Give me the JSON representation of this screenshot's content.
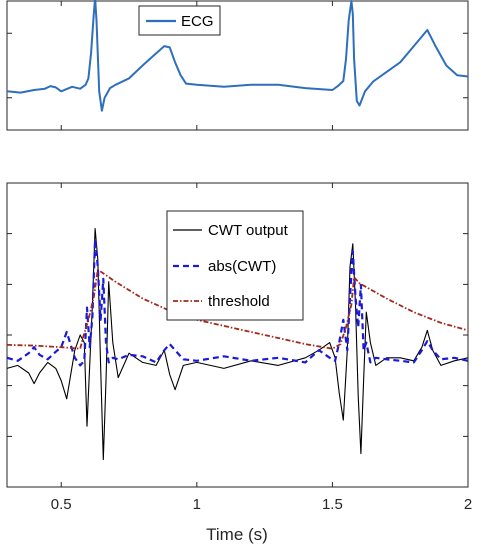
{
  "chart_data": [
    {
      "type": "line",
      "title": "",
      "xlabel": "",
      "ylabel": "",
      "xlim": [
        0.3,
        2.0
      ],
      "ylim": [
        -1,
        1
      ],
      "grid": false,
      "legend_position": "top-center",
      "series": [
        {
          "name": "ECG",
          "color": "#2e6fbd",
          "x": [
            0.3,
            0.35,
            0.4,
            0.44,
            0.46,
            0.48,
            0.5,
            0.54,
            0.57,
            0.59,
            0.6,
            0.61,
            0.62,
            0.625,
            0.63,
            0.64,
            0.65,
            0.66,
            0.68,
            0.7,
            0.75,
            0.8,
            0.84,
            0.88,
            0.9,
            0.92,
            0.94,
            0.96,
            1.0,
            1.1,
            1.2,
            1.3,
            1.4,
            1.5,
            1.52,
            1.54,
            1.55,
            1.56,
            1.57,
            1.575,
            1.58,
            1.59,
            1.6,
            1.62,
            1.65,
            1.7,
            1.75,
            1.8,
            1.83,
            1.85,
            1.88,
            1.92,
            1.96,
            2.0
          ],
          "y": [
            -0.4,
            -0.42,
            -0.38,
            -0.36,
            -0.32,
            -0.34,
            -0.4,
            -0.33,
            -0.36,
            -0.3,
            -0.2,
            0.2,
            0.8,
            1.05,
            0.7,
            -0.4,
            -0.7,
            -0.5,
            -0.35,
            -0.3,
            -0.2,
            0.0,
            0.15,
            0.3,
            0.28,
            0.05,
            -0.15,
            -0.28,
            -0.3,
            -0.33,
            -0.3,
            -0.3,
            -0.35,
            -0.38,
            -0.32,
            -0.24,
            0.1,
            0.7,
            1.0,
            0.8,
            0.1,
            -0.55,
            -0.62,
            -0.4,
            -0.25,
            -0.1,
            0.05,
            0.3,
            0.45,
            0.55,
            0.3,
            0.0,
            -0.15,
            -0.17
          ]
        }
      ]
    },
    {
      "type": "line",
      "title": "",
      "xlabel": "Time (s)",
      "ylabel": "",
      "xlim": [
        0.3,
        2.0
      ],
      "xticks": [
        0.5,
        1,
        1.5,
        2
      ],
      "xtick_labels": [
        "0.5",
        "1",
        "1.5",
        "2"
      ],
      "ylim": [
        -1,
        1
      ],
      "grid": false,
      "legend_position": "top-center",
      "series": [
        {
          "name": "CWT output",
          "color": "#000000",
          "dash": "solid",
          "x": [
            0.3,
            0.34,
            0.38,
            0.4,
            0.42,
            0.45,
            0.48,
            0.5,
            0.52,
            0.55,
            0.57,
            0.585,
            0.595,
            0.605,
            0.615,
            0.625,
            0.635,
            0.645,
            0.655,
            0.665,
            0.675,
            0.69,
            0.71,
            0.75,
            0.8,
            0.85,
            0.88,
            0.9,
            0.92,
            0.95,
            1.0,
            1.1,
            1.2,
            1.3,
            1.4,
            1.45,
            1.49,
            1.51,
            1.525,
            1.54,
            1.555,
            1.565,
            1.575,
            1.585,
            1.595,
            1.605,
            1.615,
            1.625,
            1.64,
            1.66,
            1.7,
            1.75,
            1.8,
            1.83,
            1.85,
            1.87,
            1.9,
            1.95,
            2.0
          ],
          "y": [
            -0.22,
            -0.2,
            -0.25,
            -0.32,
            -0.25,
            -0.18,
            -0.22,
            -0.3,
            -0.42,
            -0.1,
            0.0,
            -0.05,
            -0.6,
            -0.2,
            0.2,
            0.7,
            0.5,
            -0.2,
            -0.82,
            -0.3,
            0.35,
            -0.05,
            -0.28,
            -0.12,
            -0.18,
            -0.2,
            -0.1,
            -0.26,
            -0.36,
            -0.2,
            -0.18,
            -0.22,
            -0.17,
            -0.2,
            -0.15,
            -0.1,
            -0.05,
            -0.15,
            -0.38,
            -0.56,
            -0.1,
            0.45,
            0.6,
            0.2,
            -0.4,
            -0.78,
            -0.3,
            0.15,
            -0.05,
            -0.2,
            -0.15,
            -0.15,
            -0.17,
            -0.08,
            0.03,
            -0.1,
            -0.2,
            -0.17,
            -0.15
          ]
        },
        {
          "name": "abs(CWT)",
          "color": "#1a1ad8",
          "dash": "dashed",
          "x": [
            0.3,
            0.34,
            0.38,
            0.4,
            0.42,
            0.45,
            0.48,
            0.5,
            0.52,
            0.55,
            0.57,
            0.585,
            0.595,
            0.605,
            0.615,
            0.625,
            0.635,
            0.645,
            0.655,
            0.665,
            0.675,
            0.69,
            0.71,
            0.75,
            0.8,
            0.85,
            0.88,
            0.9,
            0.92,
            0.95,
            1.0,
            1.1,
            1.2,
            1.3,
            1.4,
            1.45,
            1.49,
            1.51,
            1.525,
            1.54,
            1.555,
            1.565,
            1.575,
            1.585,
            1.595,
            1.605,
            1.615,
            1.625,
            1.64,
            1.66,
            1.7,
            1.75,
            1.8,
            1.83,
            1.85,
            1.87,
            1.9,
            1.95,
            2.0
          ],
          "y": [
            -0.15,
            -0.17,
            -0.12,
            -0.08,
            -0.13,
            -0.16,
            -0.11,
            -0.08,
            0.02,
            -0.15,
            -0.2,
            -0.17,
            0.18,
            -0.08,
            0.12,
            0.63,
            0.45,
            0.1,
            0.37,
            -0.05,
            -0.18,
            -0.15,
            -0.16,
            -0.13,
            -0.14,
            -0.18,
            -0.1,
            -0.06,
            -0.1,
            -0.16,
            -0.17,
            -0.14,
            -0.17,
            -0.15,
            -0.18,
            -0.1,
            -0.15,
            -0.17,
            -0.05,
            0.1,
            -0.1,
            0.25,
            0.55,
            0.25,
            0.05,
            0.33,
            -0.1,
            -0.05,
            -0.18,
            -0.15,
            -0.16,
            -0.17,
            -0.18,
            -0.1,
            -0.04,
            -0.1,
            -0.16,
            -0.15,
            -0.17
          ]
        },
        {
          "name": "threshold",
          "color": "#a3291b",
          "dash": "dashdot",
          "x": [
            0.3,
            0.4,
            0.5,
            0.57,
            0.58,
            0.6,
            0.62,
            0.635,
            0.7,
            0.8,
            0.9,
            1.0,
            1.1,
            1.2,
            1.3,
            1.4,
            1.5,
            1.53,
            1.55,
            1.57,
            1.58,
            1.6,
            1.7,
            1.8,
            1.9,
            2.0
          ],
          "y": [
            -0.065,
            -0.07,
            -0.08,
            -0.09,
            -0.02,
            0.1,
            0.25,
            0.43,
            0.35,
            0.24,
            0.16,
            0.1,
            0.06,
            0.02,
            -0.02,
            -0.06,
            -0.09,
            -0.06,
            0.05,
            0.2,
            0.38,
            0.34,
            0.24,
            0.15,
            0.08,
            0.03
          ]
        }
      ]
    }
  ]
}
